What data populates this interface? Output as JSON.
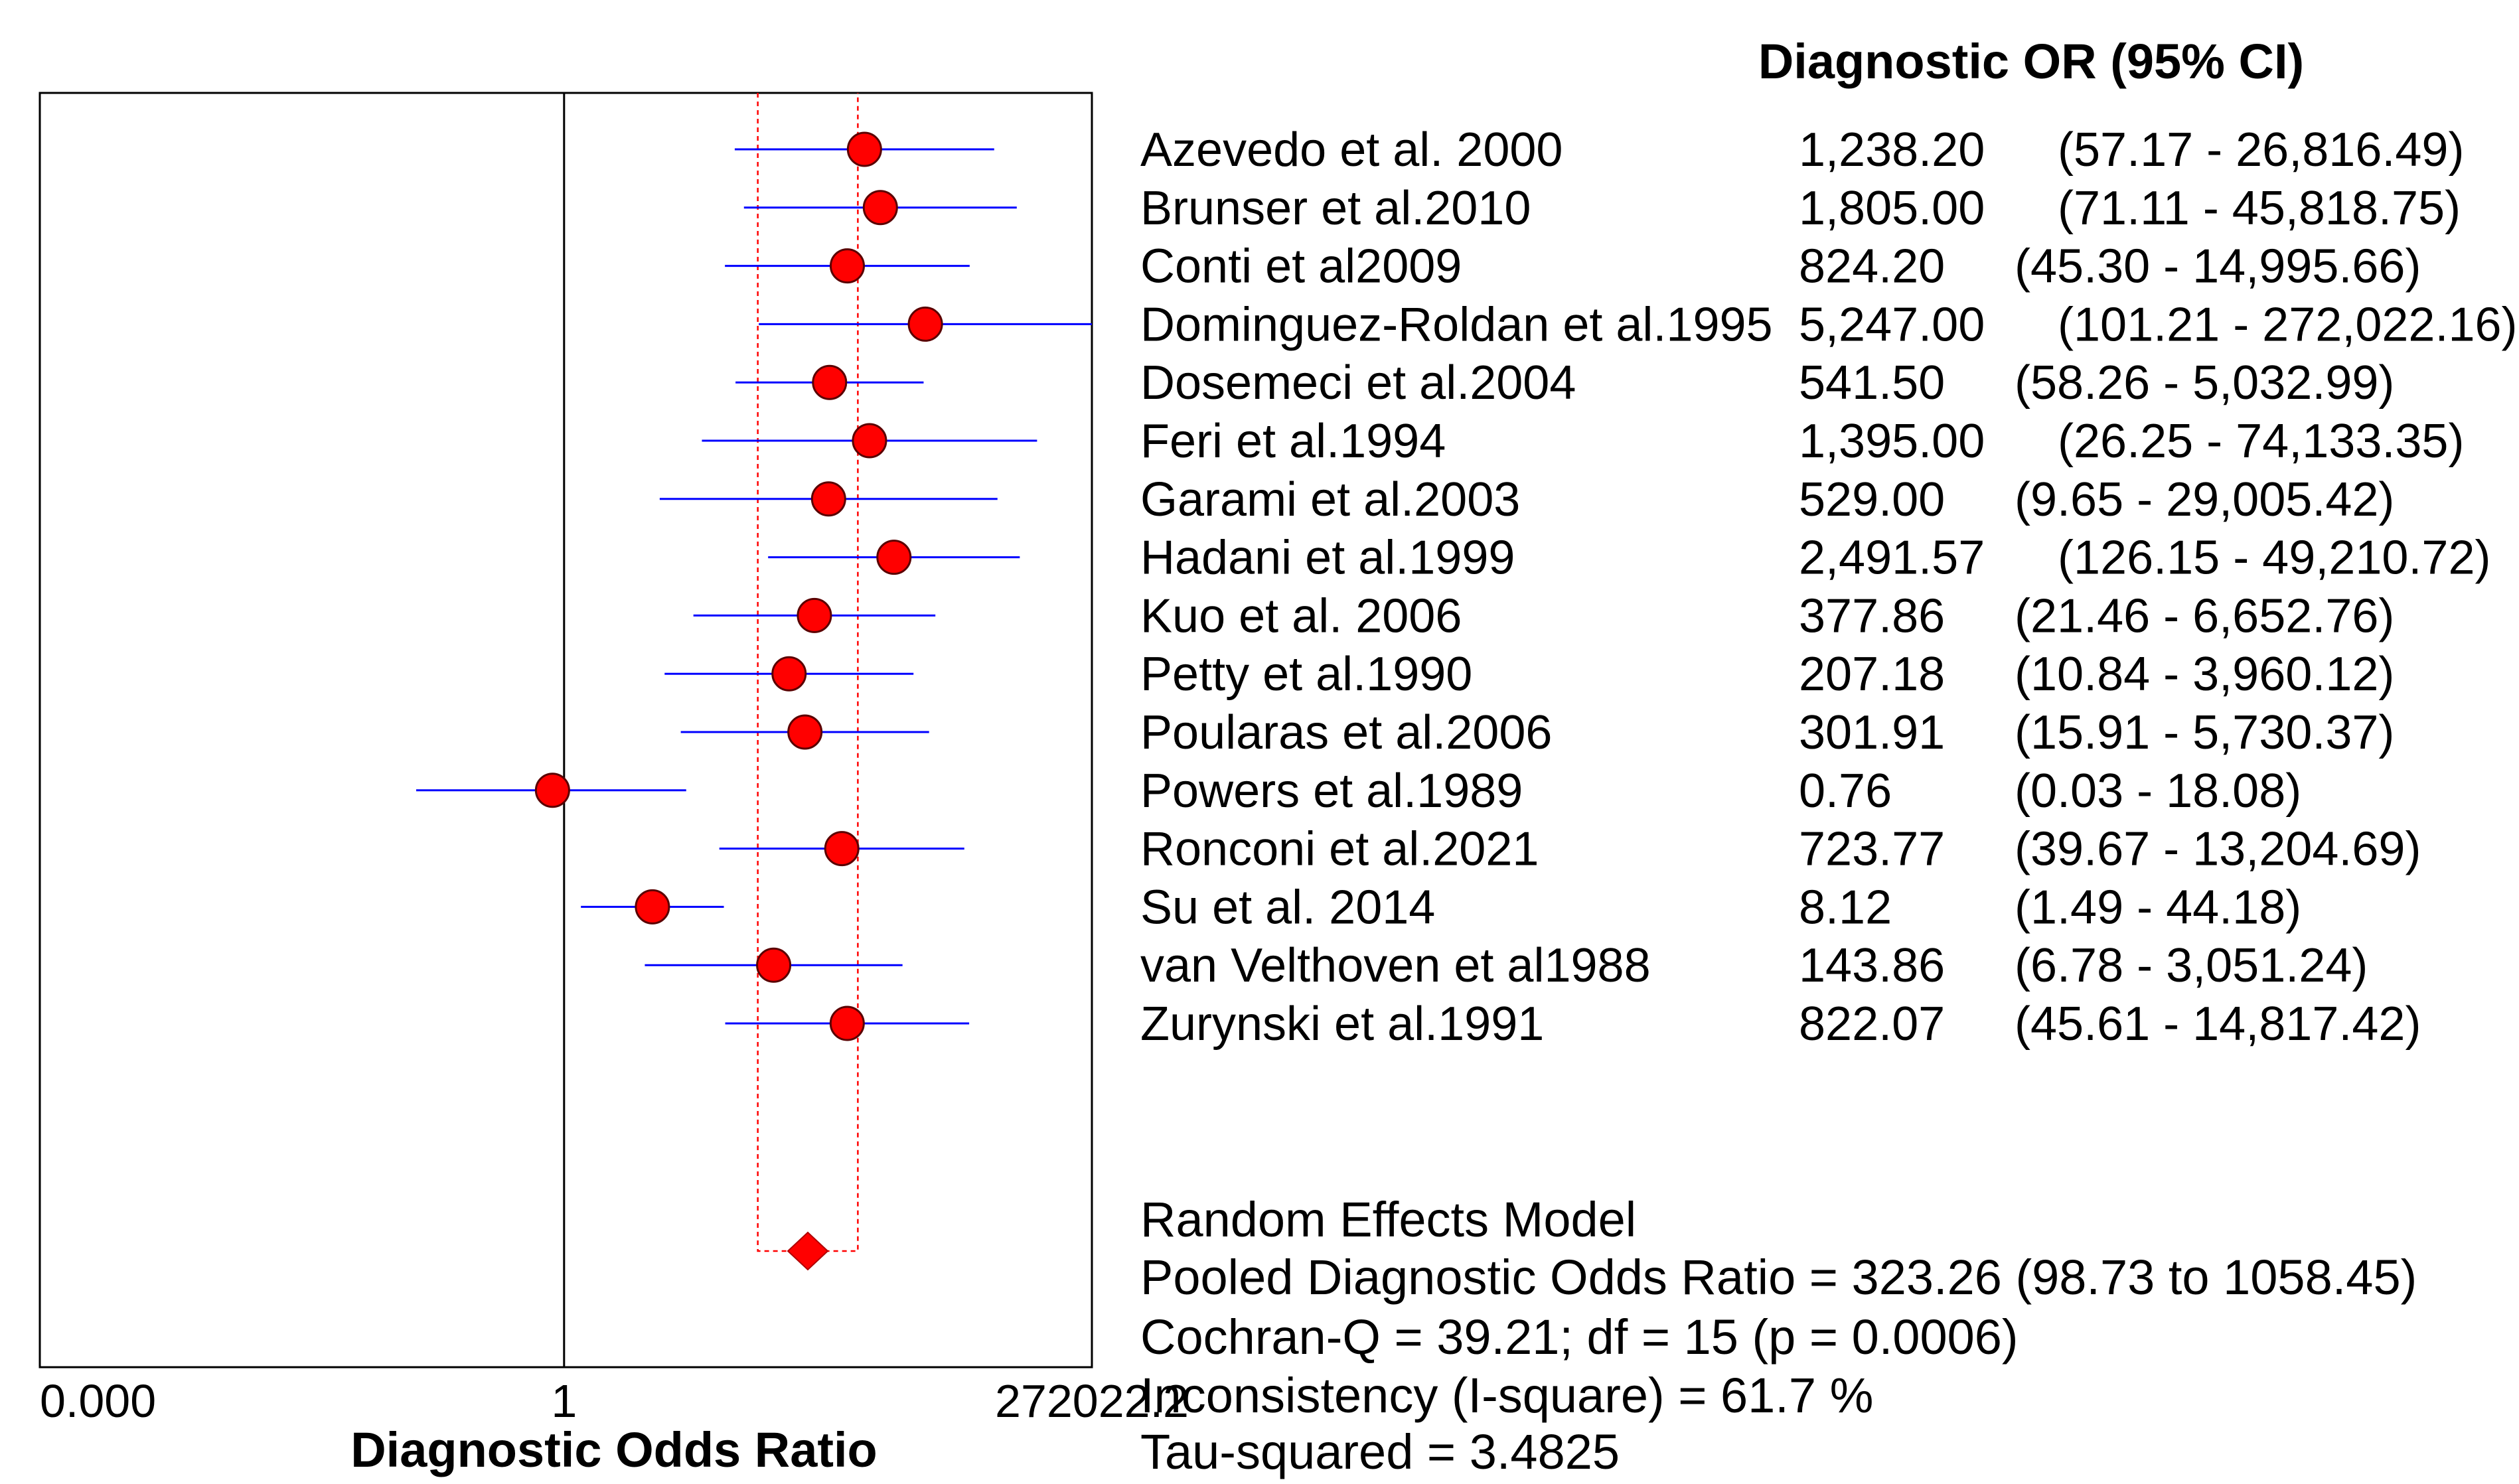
{
  "chart_data": {
    "type": "forest",
    "xlabel": "Diagnostic Odds Ratio",
    "x_scale": "log",
    "x_ticks": [
      {
        "value": 4e-06,
        "label": "0.000"
      },
      {
        "value": 1,
        "label": "1"
      },
      {
        "value": 272022.2,
        "label": "272022.2"
      }
    ],
    "column_title": "Diagnostic OR (95% CI)",
    "studies": [
      {
        "name": "Azevedo et al. 2000",
        "or": 1238.2,
        "lo": 57.17,
        "hi": 26816.49,
        "or_text": "1,238.20",
        "ci_text": "(57.17 - 26,816.49)"
      },
      {
        "name": "Brunser et al.2010",
        "or": 1805.0,
        "lo": 71.11,
        "hi": 45818.75,
        "or_text": "1,805.00",
        "ci_text": "(71.11 - 45,818.75)"
      },
      {
        "name": "Conti et al2009",
        "or": 824.2,
        "lo": 45.3,
        "hi": 14995.66,
        "or_text": "824.20",
        "ci_text": "(45.30 - 14,995.66)"
      },
      {
        "name": "Dominguez-Roldan et al.1995",
        "or": 5247.0,
        "lo": 101.21,
        "hi": 272022.16,
        "or_text": "5,247.00",
        "ci_text": "(101.21 - 272,022.16)"
      },
      {
        "name": "Dosemeci et al.2004",
        "or": 541.5,
        "lo": 58.26,
        "hi": 5032.99,
        "or_text": "541.50",
        "ci_text": "(58.26 - 5,032.99)"
      },
      {
        "name": "Feri et al.1994",
        "or": 1395.0,
        "lo": 26.25,
        "hi": 74133.35,
        "or_text": "1,395.00",
        "ci_text": "(26.25 - 74,133.35)"
      },
      {
        "name": "Garami et al.2003",
        "or": 529.0,
        "lo": 9.65,
        "hi": 29005.42,
        "or_text": "529.00",
        "ci_text": "(9.65 - 29,005.42)"
      },
      {
        "name": "Hadani et al.1999",
        "or": 2491.57,
        "lo": 126.15,
        "hi": 49210.72,
        "or_text": "2,491.57",
        "ci_text": "(126.15 - 49,210.72)"
      },
      {
        "name": "Kuo et al. 2006",
        "or": 377.86,
        "lo": 21.46,
        "hi": 6652.76,
        "or_text": "377.86",
        "ci_text": "(21.46 - 6,652.76)"
      },
      {
        "name": "Petty et al.1990",
        "or": 207.18,
        "lo": 10.84,
        "hi": 3960.12,
        "or_text": "207.18",
        "ci_text": "(10.84 - 3,960.12)"
      },
      {
        "name": "Poularas et al.2006",
        "or": 301.91,
        "lo": 15.91,
        "hi": 5730.37,
        "or_text": "301.91",
        "ci_text": "(15.91 - 5,730.37)"
      },
      {
        "name": "Powers et al.1989",
        "or": 0.76,
        "lo": 0.03,
        "hi": 18.08,
        "or_text": "0.76",
        "ci_text": "(0.03 - 18.08)"
      },
      {
        "name": "Ronconi et al.2021",
        "or": 723.77,
        "lo": 39.67,
        "hi": 13204.69,
        "or_text": "723.77",
        "ci_text": "(39.67 - 13,204.69)"
      },
      {
        "name": "Su et al. 2014",
        "or": 8.12,
        "lo": 1.49,
        "hi": 44.18,
        "or_text": "8.12",
        "ci_text": "(1.49 - 44.18)"
      },
      {
        "name": "van Velthoven et al1988",
        "or": 143.86,
        "lo": 6.78,
        "hi": 3051.24,
        "or_text": "143.86",
        "ci_text": "(6.78 - 3,051.24)"
      },
      {
        "name": "Zurynski et al.1991",
        "or": 822.07,
        "lo": 45.61,
        "hi": 14817.42,
        "or_text": "822.07",
        "ci_text": "(45.61 - 14,817.42)"
      }
    ],
    "pooled": {
      "or": 323.26,
      "lo": 98.73,
      "hi": 1058.45
    },
    "summary_lines": [
      "Random Effects Model",
      "Pooled Diagnostic Odds Ratio = 323.26 (98.73 to 1058.45)",
      "Cochran-Q = 39.21; df =  15 (p = 0.0006)",
      "Inconsistency (I-square) = 61.7 %",
      "Tau-squared = 3.4825"
    ],
    "colors": {
      "ci_line": "#0000ff",
      "point": "#ff0000",
      "pooled_band": "#ff0000",
      "axis": "#000000"
    }
  }
}
